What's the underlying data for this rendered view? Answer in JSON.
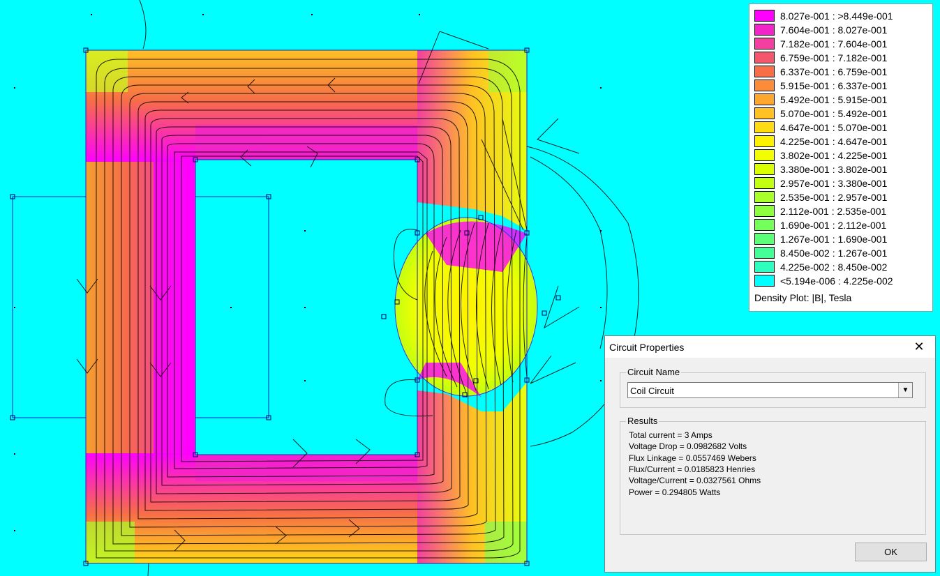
{
  "legend": {
    "entries": [
      {
        "range": "8.027e-001 : >8.449e-001",
        "color": "#ff00ff"
      },
      {
        "range": "7.604e-001 : 8.027e-001",
        "color": "#f226c8"
      },
      {
        "range": "7.182e-001 : 7.604e-001",
        "color": "#f23fa0"
      },
      {
        "range": "6.759e-001 : 7.182e-001",
        "color": "#f4566e"
      },
      {
        "range": "6.337e-001 : 6.759e-001",
        "color": "#f76e47"
      },
      {
        "range": "5.915e-001 : 6.337e-001",
        "color": "#fa8c3a"
      },
      {
        "range": "5.492e-001 : 5.915e-001",
        "color": "#fda72f"
      },
      {
        "range": "5.070e-001 : 5.492e-001",
        "color": "#ffc124"
      },
      {
        "range": "4.647e-001 : 5.070e-001",
        "color": "#ffdb14"
      },
      {
        "range": "4.225e-001 : 4.647e-001",
        "color": "#fff200"
      },
      {
        "range": "3.802e-001 : 4.225e-001",
        "color": "#f2ff00"
      },
      {
        "range": "3.380e-001 : 3.802e-001",
        "color": "#d9ff00"
      },
      {
        "range": "2.957e-001 : 3.380e-001",
        "color": "#c3ff10"
      },
      {
        "range": "2.535e-001 : 2.957e-001",
        "color": "#a8ff2a"
      },
      {
        "range": "2.112e-001 : 2.535e-001",
        "color": "#8eff3f"
      },
      {
        "range": "1.690e-001 : 2.112e-001",
        "color": "#74ff5a"
      },
      {
        "range": "1.267e-001 : 1.690e-001",
        "color": "#5cff78"
      },
      {
        "range": "8.450e-002 : 1.267e-001",
        "color": "#44ff98"
      },
      {
        "range": "4.225e-002 : 8.450e-002",
        "color": "#2cffbe"
      },
      {
        "range": "<5.194e-006 : 4.225e-002",
        "color": "#00ffff"
      }
    ],
    "caption": "Density Plot: |B|, Tesla"
  },
  "dialog": {
    "title": "Circuit Properties",
    "close_glyph": "✕",
    "circuit_name_label": "Circuit Name",
    "circuit_name_value": "Coil Circuit",
    "results_label": "Results",
    "results": [
      "Total current = 3 Amps",
      "Voltage Drop = 0.0982682 Volts",
      "Flux Linkage = 0.0557469 Webers",
      "Flux/Current = 0.0185823 Henries",
      "Voltage/Current = 0.0327561 Ohms",
      "Power = 0.294805 Watts"
    ],
    "ok_label": "OK"
  }
}
